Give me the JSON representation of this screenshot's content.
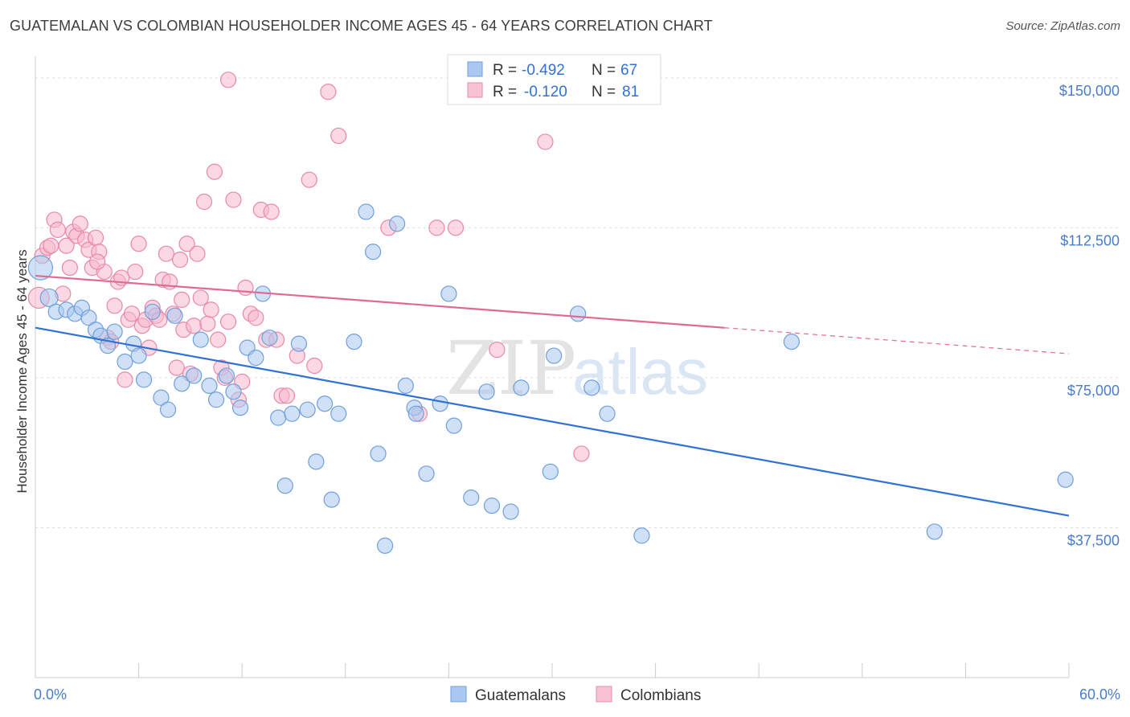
{
  "header": {
    "title": "GUATEMALAN VS COLOMBIAN HOUSEHOLDER INCOME AGES 45 - 64 YEARS CORRELATION CHART",
    "source": "Source: ZipAtlas.com"
  },
  "watermark": {
    "zip": "ZIP",
    "atlas": "atlas"
  },
  "colors": {
    "blue": "#4a7cc9",
    "blue_fill": "#aac8f0",
    "blue_line": "#2f72d4",
    "pink_fill": "#f7b8cc",
    "pink_stroke": "#e889a8",
    "pink_line": "#e06a94",
    "grid": "#dddddd",
    "axis": "#cccccc"
  },
  "legend": {
    "rows": [
      {
        "r_label": "R =",
        "r_value": "-0.492",
        "n_label": "N =",
        "n_value": "67",
        "color": "blue"
      },
      {
        "r_label": "R =",
        "r_value": "-0.120",
        "n_label": "N =",
        "n_value": "81",
        "color": "pink"
      }
    ],
    "bottom": [
      {
        "label": "Guatemalans",
        "color": "blue"
      },
      {
        "label": "Colombians",
        "color": "pink"
      }
    ]
  },
  "chart_data": {
    "type": "scatter",
    "title": "GUATEMALAN VS COLOMBIAN HOUSEHOLDER INCOME AGES 45 - 64 YEARS CORRELATION CHART",
    "xlabel": "",
    "ylabel": "Householder Income Ages 45 - 64 years",
    "xlim": [
      0,
      60
    ],
    "ylim": [
      0,
      157000
    ],
    "x_tick_labels": [
      "0.0%",
      "60.0%"
    ],
    "y_ticks": [
      37500,
      75000,
      112500,
      150000
    ],
    "y_tick_labels": [
      "$37,500",
      "$75,000",
      "$112,500",
      "$150,000"
    ],
    "grid": true,
    "legend_position": "top-center",
    "series": [
      {
        "name": "Guatemalans",
        "trend": {
          "x": [
            0,
            60
          ],
          "y": [
            87500,
            40500
          ]
        },
        "points": [
          [
            0.3,
            102500
          ],
          [
            0.8,
            95000
          ],
          [
            1.2,
            91500
          ],
          [
            1.8,
            92000
          ],
          [
            2.3,
            91000
          ],
          [
            2.7,
            92500
          ],
          [
            3.1,
            90000
          ],
          [
            3.5,
            87000
          ],
          [
            3.8,
            85500
          ],
          [
            4.2,
            83000
          ],
          [
            4.6,
            86500
          ],
          [
            5.2,
            79000
          ],
          [
            5.7,
            83500
          ],
          [
            6.0,
            80500
          ],
          [
            6.3,
            74500
          ],
          [
            6.8,
            91500
          ],
          [
            7.3,
            70000
          ],
          [
            7.7,
            67000
          ],
          [
            8.1,
            90500
          ],
          [
            8.5,
            73500
          ],
          [
            9.2,
            75500
          ],
          [
            9.6,
            84500
          ],
          [
            10.1,
            73000
          ],
          [
            10.5,
            69500
          ],
          [
            11.1,
            75500
          ],
          [
            11.5,
            71500
          ],
          [
            11.9,
            67500
          ],
          [
            12.3,
            82500
          ],
          [
            12.8,
            80000
          ],
          [
            13.2,
            96000
          ],
          [
            13.6,
            85000
          ],
          [
            14.1,
            65000
          ],
          [
            14.5,
            48000
          ],
          [
            14.9,
            66000
          ],
          [
            15.3,
            83500
          ],
          [
            15.8,
            67000
          ],
          [
            16.3,
            54000
          ],
          [
            16.8,
            68500
          ],
          [
            17.2,
            44500
          ],
          [
            17.6,
            66000
          ],
          [
            18.5,
            84000
          ],
          [
            19.2,
            116500
          ],
          [
            19.6,
            106500
          ],
          [
            19.9,
            56000
          ],
          [
            20.3,
            33000
          ],
          [
            21.0,
            113500
          ],
          [
            21.5,
            73000
          ],
          [
            22.0,
            67500
          ],
          [
            22.7,
            51000
          ],
          [
            23.5,
            68500
          ],
          [
            24.0,
            96000
          ],
          [
            24.3,
            63000
          ],
          [
            25.3,
            45000
          ],
          [
            26.2,
            71500
          ],
          [
            26.5,
            43000
          ],
          [
            27.6,
            41500
          ],
          [
            28.2,
            72500
          ],
          [
            29.9,
            51500
          ],
          [
            30.1,
            80500
          ],
          [
            31.5,
            91000
          ],
          [
            32.3,
            72500
          ],
          [
            33.2,
            66000
          ],
          [
            35.2,
            35500
          ],
          [
            43.9,
            84000
          ],
          [
            52.2,
            36500
          ],
          [
            59.8,
            49500
          ],
          [
            22.1,
            66000
          ]
        ]
      },
      {
        "name": "Colombians",
        "trend": {
          "x": [
            0,
            40
          ],
          "y": [
            100500,
            87500
          ]
        },
        "trend_dashed": {
          "x": [
            40,
            60
          ],
          "y": [
            87500,
            81000
          ]
        },
        "points": [
          [
            0.2,
            95000
          ],
          [
            0.4,
            105500
          ],
          [
            0.7,
            107500
          ],
          [
            0.9,
            108000
          ],
          [
            1.1,
            114500
          ],
          [
            1.3,
            112000
          ],
          [
            1.6,
            96000
          ],
          [
            1.8,
            108000
          ],
          [
            2.0,
            102500
          ],
          [
            2.2,
            111500
          ],
          [
            2.4,
            110500
          ],
          [
            2.6,
            113500
          ],
          [
            2.9,
            109500
          ],
          [
            3.1,
            107000
          ],
          [
            3.3,
            102500
          ],
          [
            3.5,
            110000
          ],
          [
            3.7,
            106500
          ],
          [
            4.0,
            101500
          ],
          [
            4.2,
            85000
          ],
          [
            4.4,
            84000
          ],
          [
            4.6,
            93000
          ],
          [
            4.8,
            99000
          ],
          [
            5.0,
            100000
          ],
          [
            5.2,
            74500
          ],
          [
            5.4,
            89500
          ],
          [
            5.6,
            91000
          ],
          [
            5.8,
            101500
          ],
          [
            6.0,
            108500
          ],
          [
            6.2,
            88000
          ],
          [
            6.4,
            89500
          ],
          [
            6.6,
            82500
          ],
          [
            6.8,
            92500
          ],
          [
            7.0,
            90500
          ],
          [
            7.2,
            89500
          ],
          [
            7.4,
            99500
          ],
          [
            7.6,
            106000
          ],
          [
            7.8,
            99000
          ],
          [
            8.0,
            91000
          ],
          [
            8.2,
            77500
          ],
          [
            8.4,
            104500
          ],
          [
            8.6,
            87000
          ],
          [
            8.8,
            108500
          ],
          [
            9.0,
            76000
          ],
          [
            9.2,
            88000
          ],
          [
            9.4,
            106000
          ],
          [
            9.6,
            95000
          ],
          [
            9.8,
            119000
          ],
          [
            10.0,
            88500
          ],
          [
            10.2,
            92000
          ],
          [
            10.4,
            126500
          ],
          [
            10.6,
            84500
          ],
          [
            10.8,
            77500
          ],
          [
            11.0,
            75000
          ],
          [
            11.2,
            89000
          ],
          [
            11.5,
            119500
          ],
          [
            11.8,
            69500
          ],
          [
            12.0,
            74000
          ],
          [
            12.2,
            97500
          ],
          [
            12.5,
            91000
          ],
          [
            12.8,
            90000
          ],
          [
            13.1,
            117000
          ],
          [
            13.4,
            84500
          ],
          [
            13.7,
            116500
          ],
          [
            14.0,
            84500
          ],
          [
            14.3,
            70500
          ],
          [
            14.6,
            70500
          ],
          [
            15.2,
            80500
          ],
          [
            15.9,
            124500
          ],
          [
            16.2,
            78000
          ],
          [
            17.0,
            146500
          ],
          [
            17.6,
            135500
          ],
          [
            20.5,
            112500
          ],
          [
            22.3,
            66000
          ],
          [
            23.3,
            112500
          ],
          [
            24.4,
            112500
          ],
          [
            26.8,
            82000
          ],
          [
            29.6,
            134000
          ],
          [
            31.7,
            56000
          ],
          [
            11.2,
            149500
          ],
          [
            8.5,
            94500
          ],
          [
            3.6,
            104000
          ]
        ]
      }
    ]
  }
}
